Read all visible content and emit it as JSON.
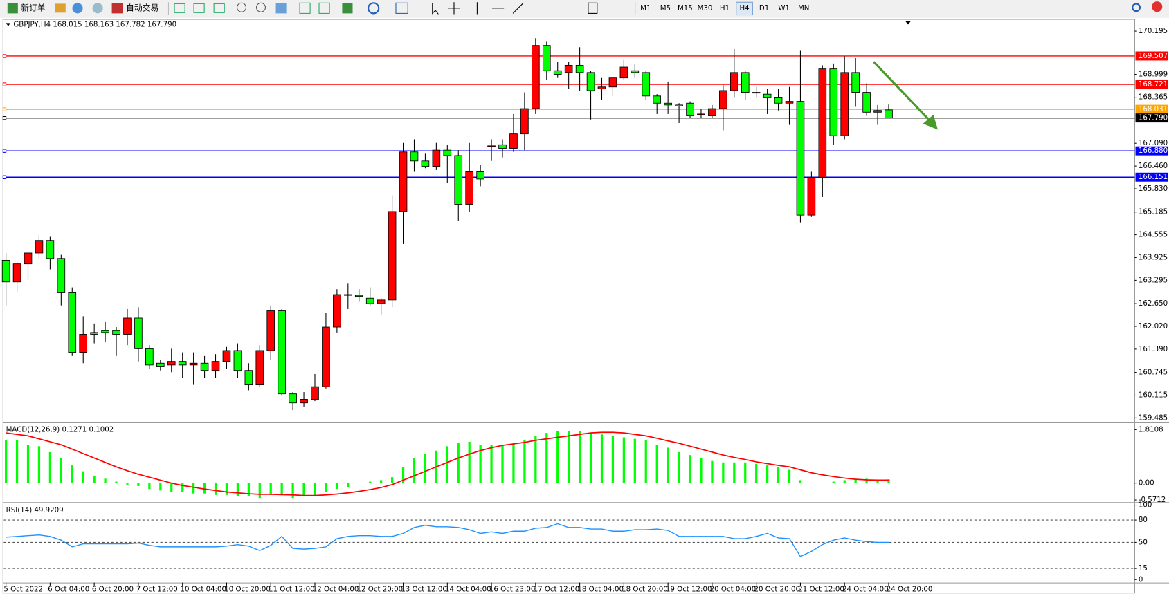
{
  "toolbar": {
    "new_order": "新订单",
    "auto_trading": "自动交易",
    "timeframes": [
      "M1",
      "M5",
      "M15",
      "M30",
      "H1",
      "H4",
      "D1",
      "W1",
      "MN"
    ],
    "active_timeframe": "H4"
  },
  "chart_data": [
    {
      "type": "candlestick",
      "title": "GBPJPY,H4  168.015 168.163 167.782 167.790",
      "categories": [
        "5 Oct 2022",
        null,
        null,
        null,
        "6 Oct 04:00",
        null,
        null,
        null,
        "6 Oct 20:00",
        null,
        null,
        null,
        "7 Oct 12:00",
        null,
        null,
        null,
        "10 Oct 04:00",
        null,
        null,
        null,
        "10 Oct 20:00",
        null,
        null,
        null,
        "11 Oct 12:00",
        null,
        null,
        null,
        "12 Oct 04:00",
        null,
        null,
        null,
        "12 Oct 20:00",
        null,
        null,
        null,
        "13 Oct 12:00",
        null,
        null,
        null,
        "14 Oct 04:00",
        null,
        null,
        null,
        "16 Oct 23:00",
        null,
        null,
        null,
        "17 Oct 12:00",
        null,
        null,
        null,
        "18 Oct 04:00",
        null,
        null,
        null,
        "18 Oct 20:00",
        null,
        null,
        null,
        "19 Oct 12:00",
        null,
        null,
        null,
        "20 Oct 04:00",
        null,
        null,
        null,
        "20 Oct 20:00",
        null,
        null,
        null,
        "21 Oct 12:00",
        null,
        null,
        null,
        "24 Oct 04:00",
        null,
        null,
        null,
        "24 Oct 20:00"
      ],
      "open": [
        163.85,
        163.25,
        163.75,
        164.05,
        164.4,
        163.9,
        162.95,
        161.3,
        161.85,
        161.9,
        161.9,
        161.8,
        162.25,
        161.4,
        161.0,
        160.95,
        161.05,
        160.95,
        161.0,
        160.8,
        161.05,
        161.35,
        160.8,
        160.4,
        161.35,
        162.45,
        160.15,
        159.9,
        160.0,
        160.35,
        162.0,
        162.9,
        162.88,
        162.8,
        162.65,
        162.75,
        165.2,
        166.85,
        166.6,
        166.45,
        166.9,
        166.75,
        165.4,
        166.3,
        167.0,
        167.05,
        166.95,
        167.35,
        168.05,
        169.8,
        169.1,
        169.05,
        169.25,
        169.05,
        168.6,
        168.65,
        168.9,
        169.1,
        169.05,
        168.4,
        168.2,
        168.15,
        168.2,
        167.9,
        167.85,
        168.05,
        168.55,
        169.05,
        168.5,
        168.45,
        168.35,
        168.2,
        168.25,
        165.1,
        166.15,
        169.15,
        167.3,
        169.05,
        168.5,
        167.95,
        168.015
      ],
      "high": [
        164.05,
        163.8,
        164.1,
        164.55,
        164.5,
        164.0,
        163.1,
        162.3,
        162.1,
        162.15,
        162.0,
        162.5,
        162.55,
        161.5,
        161.1,
        161.4,
        161.3,
        161.3,
        161.2,
        161.25,
        161.45,
        161.55,
        161.0,
        161.5,
        162.6,
        162.5,
        160.2,
        160.2,
        160.7,
        162.4,
        163.05,
        163.2,
        163.05,
        163.1,
        162.8,
        165.65,
        167.1,
        167.2,
        166.8,
        167.1,
        167.05,
        166.9,
        167.1,
        166.5,
        167.2,
        167.2,
        167.9,
        168.5,
        170.0,
        169.9,
        169.35,
        169.35,
        169.75,
        169.1,
        168.9,
        168.9,
        169.4,
        169.3,
        169.1,
        168.45,
        168.8,
        168.2,
        168.25,
        168.05,
        168.15,
        168.7,
        169.7,
        169.1,
        168.65,
        168.6,
        168.6,
        168.65,
        169.65,
        166.3,
        169.25,
        169.3,
        169.5,
        169.45,
        168.75,
        168.15,
        168.163
      ],
      "low": [
        162.6,
        162.95,
        163.3,
        163.9,
        163.6,
        162.6,
        161.2,
        161.0,
        161.55,
        161.6,
        161.2,
        161.5,
        161.05,
        160.85,
        160.8,
        160.75,
        160.6,
        160.4,
        160.6,
        160.6,
        160.85,
        160.6,
        160.25,
        160.35,
        161.1,
        160.1,
        159.7,
        159.8,
        159.95,
        160.3,
        161.85,
        162.5,
        162.7,
        162.6,
        162.35,
        162.55,
        164.3,
        166.3,
        166.4,
        166.35,
        166.0,
        164.95,
        165.2,
        165.9,
        166.6,
        166.7,
        166.85,
        166.9,
        167.9,
        168.85,
        168.9,
        168.6,
        168.55,
        167.75,
        168.3,
        168.4,
        168.85,
        168.9,
        168.3,
        167.9,
        167.9,
        167.65,
        167.8,
        167.8,
        167.8,
        167.45,
        168.35,
        168.3,
        168.35,
        167.9,
        168.0,
        167.6,
        164.9,
        165.05,
        165.6,
        167.05,
        167.2,
        168.1,
        167.85,
        167.6,
        167.782
      ],
      "close": [
        163.25,
        163.75,
        164.05,
        164.4,
        163.9,
        162.95,
        161.3,
        161.8,
        161.8,
        161.85,
        161.8,
        162.25,
        161.4,
        160.95,
        160.9,
        161.05,
        160.95,
        161.0,
        160.8,
        161.05,
        161.35,
        160.8,
        160.4,
        161.35,
        162.45,
        160.15,
        159.9,
        160.0,
        160.35,
        162.0,
        162.9,
        162.88,
        162.85,
        162.65,
        162.75,
        165.2,
        166.85,
        166.6,
        166.45,
        166.9,
        166.75,
        165.4,
        166.3,
        166.1,
        167.02,
        166.95,
        167.35,
        168.05,
        169.8,
        169.1,
        169.0,
        169.25,
        169.05,
        168.55,
        168.65,
        168.9,
        169.2,
        169.05,
        168.4,
        168.2,
        168.15,
        168.12,
        167.85,
        167.9,
        168.05,
        168.55,
        169.05,
        168.5,
        168.48,
        168.35,
        168.2,
        168.25,
        165.1,
        166.15,
        169.15,
        167.3,
        169.05,
        168.5,
        167.95,
        168.0,
        167.79
      ],
      "up_color": "#ff0000",
      "down_color": "#00ff00",
      "ylim": [
        159.38,
        170.48
      ],
      "yticks": [
        170.195,
        168.999,
        168.365,
        {
          "value": 167.09,
          "label": "167.090"
        },
        {
          "value": 166.46,
          "label": "166.460"
        },
        {
          "value": 165.83,
          "label": "165.830"
        },
        165.185,
        164.555,
        163.925,
        163.295,
        {
          "value": 162.65,
          "label": "162.650"
        },
        {
          "value": 162.02,
          "label": "162.020"
        },
        {
          "value": 161.39,
          "label": "161.390"
        },
        160.745,
        160.115,
        159.485
      ],
      "levels": [
        {
          "value": 169.507,
          "color": "#ff0000"
        },
        {
          "value": 168.721,
          "color": "#ff0000"
        },
        {
          "value": 168.031,
          "color": "#ffa500"
        },
        {
          "value": 167.79,
          "label": "167.790",
          "color": "#000000"
        },
        {
          "value": 166.88,
          "label": "166.880",
          "color": "#0000ff"
        },
        {
          "value": 166.151,
          "color": "#0000ff"
        }
      ]
    },
    {
      "type": "macd",
      "title": "MACD(12,26,9) 0.1271 0.1002",
      "histogram": [
        1.45,
        1.45,
        1.3,
        1.25,
        1.05,
        0.85,
        0.6,
        0.4,
        0.25,
        0.15,
        0.05,
        -0.05,
        -0.1,
        -0.2,
        -0.25,
        -0.3,
        -0.3,
        -0.35,
        -0.35,
        -0.4,
        -0.4,
        -0.45,
        -0.45,
        -0.5,
        -0.4,
        -0.4,
        -0.5,
        -0.45,
        -0.45,
        -0.3,
        -0.2,
        -0.15,
        0.0,
        0.05,
        0.1,
        0.2,
        0.55,
        0.85,
        1.0,
        1.1,
        1.25,
        1.35,
        1.4,
        1.3,
        1.3,
        1.3,
        1.35,
        1.45,
        1.6,
        1.7,
        1.75,
        1.75,
        1.75,
        1.7,
        1.65,
        1.6,
        1.55,
        1.5,
        1.45,
        1.3,
        1.2,
        1.05,
        0.95,
        0.85,
        0.75,
        0.7,
        0.7,
        0.7,
        0.65,
        0.6,
        0.55,
        0.45,
        0.1,
        0.0,
        0.0,
        0.05,
        0.1,
        0.15,
        0.15,
        0.12,
        0.1271
      ],
      "signal": [
        1.7,
        1.65,
        1.6,
        1.5,
        1.4,
        1.3,
        1.15,
        1.0,
        0.85,
        0.7,
        0.55,
        0.42,
        0.3,
        0.2,
        0.1,
        0.0,
        -0.08,
        -0.14,
        -0.2,
        -0.25,
        -0.3,
        -0.33,
        -0.36,
        -0.38,
        -0.38,
        -0.39,
        -0.4,
        -0.42,
        -0.42,
        -0.4,
        -0.37,
        -0.33,
        -0.28,
        -0.22,
        -0.15,
        -0.05,
        0.1,
        0.25,
        0.4,
        0.55,
        0.7,
        0.85,
        0.98,
        1.1,
        1.2,
        1.28,
        1.33,
        1.38,
        1.45,
        1.5,
        1.55,
        1.6,
        1.65,
        1.7,
        1.72,
        1.72,
        1.7,
        1.65,
        1.6,
        1.52,
        1.43,
        1.35,
        1.25,
        1.15,
        1.05,
        0.95,
        0.87,
        0.8,
        0.72,
        0.66,
        0.6,
        0.55,
        0.45,
        0.35,
        0.28,
        0.22,
        0.17,
        0.13,
        0.11,
        0.1,
        0.1002
      ],
      "histogram_color": "#00ff00",
      "signal_color": "#ff0000",
      "ylim": [
        -0.62,
        1.98
      ],
      "yticks": [
        1.8108,
        {
          "value": 0,
          "label": "0.00"
        },
        -0.5712
      ]
    },
    {
      "type": "line",
      "title": "RSI(14) 49.9209",
      "values": [
        57,
        58,
        59,
        60,
        58,
        53,
        44,
        48,
        48,
        48,
        48,
        48,
        49,
        46,
        44,
        44,
        44,
        44,
        44,
        44,
        45,
        47,
        45,
        39,
        46,
        58,
        42,
        41,
        42,
        44,
        55,
        58,
        59,
        59,
        58,
        58,
        62,
        70,
        73,
        71,
        71,
        70,
        67,
        62,
        64,
        62,
        65,
        65,
        69,
        70,
        75,
        70,
        70,
        68,
        68,
        65,
        65,
        67,
        67,
        68,
        66,
        58,
        58,
        58,
        58,
        58,
        55,
        55,
        58,
        62,
        56,
        55,
        31,
        38,
        47,
        53,
        56,
        53,
        51,
        50,
        49.9209
      ],
      "color": "#1e90ff",
      "ylim": [
        -4,
        101
      ],
      "yticks": [
        100,
        80,
        50,
        15,
        0
      ],
      "grid_levels": [
        80,
        50,
        15
      ]
    }
  ]
}
